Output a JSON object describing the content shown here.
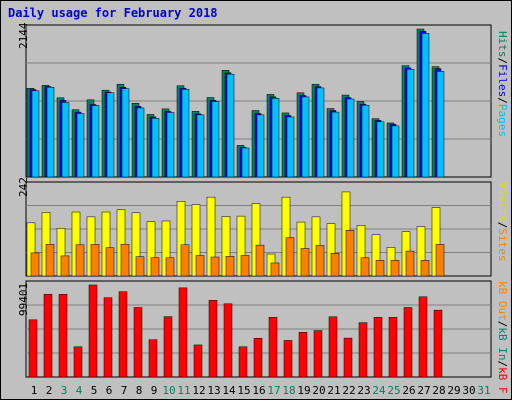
{
  "title": "Daily usage for February 2018",
  "colors": {
    "hits": "#00805c",
    "files": "#0000ff",
    "pages": "#00c0ff",
    "visits": "#ffff00",
    "sites": "#ff8000",
    "kb_in": "#008080",
    "kb_out": "#ff0000",
    "grid": "#808080",
    "panel": "#c0c0c0"
  },
  "labels": {
    "panel1_max": "2144",
    "panel2_max": "242",
    "panel3_max": "99401",
    "pages": "Pages",
    "files": "Files",
    "hits": "Hits",
    "sites": "Sites",
    "visits": "Visits",
    "kb_f": "kB F",
    "kb_in": "kB In",
    "kb_out": "kB Out",
    "sep": "/"
  },
  "chart_data": [
    {
      "type": "bar",
      "panel": "hits-files-pages",
      "ylim": [
        0,
        2144
      ],
      "grid": true,
      "categories": [
        "1",
        "2",
        "3",
        "4",
        "5",
        "6",
        "7",
        "8",
        "9",
        "10",
        "11",
        "12",
        "13",
        "14",
        "15",
        "16",
        "17",
        "18",
        "19",
        "20",
        "21",
        "22",
        "23",
        "24",
        "25",
        "26",
        "27",
        "28",
        "29",
        "30",
        "31"
      ],
      "weekend_days": [
        3,
        4,
        10,
        11,
        17,
        18,
        24,
        25,
        31
      ],
      "series": [
        {
          "name": "Hits",
          "values": [
            1285,
            1328,
            1147,
            975,
            1118,
            1258,
            1344,
            1068,
            906,
            987,
            1322,
            951,
            1151,
            1546,
            458,
            963,
            1197,
            928,
            1220,
            1344,
            992,
            1187,
            1092,
            845,
            783,
            1613,
            2144,
            1599,
            null,
            null,
            null
          ]
        },
        {
          "name": "Files",
          "values": [
            1266,
            1310,
            1110,
            940,
            1050,
            1230,
            1300,
            1023,
            870,
            950,
            1286,
            914,
            1110,
            1510,
            430,
            920,
            1160,
            890,
            1180,
            1310,
            963,
            1150,
            1055,
            820,
            762,
            1580,
            2110,
            1570,
            null,
            null,
            null
          ]
        },
        {
          "name": "Pages",
          "values": [
            1250,
            1300,
            1080,
            920,
            1035,
            1220,
            1280,
            1000,
            850,
            935,
            1270,
            900,
            1094,
            1490,
            420,
            900,
            1140,
            870,
            1160,
            1290,
            940,
            1130,
            1040,
            800,
            740,
            1560,
            2080,
            1530,
            null,
            null,
            null
          ]
        }
      ]
    },
    {
      "type": "bar",
      "panel": "visits-sites",
      "ylim": [
        0,
        242
      ],
      "grid": true,
      "categories": [
        "1",
        "2",
        "3",
        "4",
        "5",
        "6",
        "7",
        "8",
        "9",
        "10",
        "11",
        "12",
        "13",
        "14",
        "15",
        "16",
        "17",
        "18",
        "19",
        "20",
        "21",
        "22",
        "23",
        "24",
        "25",
        "26",
        "27",
        "28",
        "29",
        "30",
        "31"
      ],
      "series": [
        {
          "name": "Visits",
          "values": [
            143,
            171,
            128,
            172,
            159,
            172,
            178,
            170,
            146,
            148,
            201,
            192,
            212,
            160,
            161,
            195,
            59,
            212,
            145,
            159,
            141,
            226,
            136,
            111,
            77,
            119,
            133,
            184,
            null,
            null,
            null
          ]
        },
        {
          "name": "Sites",
          "values": [
            62,
            85,
            54,
            84,
            85,
            76,
            85,
            52,
            49,
            49,
            84,
            55,
            51,
            53,
            55,
            83,
            35,
            103,
            74,
            82,
            61,
            123,
            49,
            42,
            42,
            67,
            42,
            85,
            null,
            null,
            null
          ]
        }
      ]
    },
    {
      "type": "bar",
      "panel": "kb",
      "ylim": [
        0,
        99401
      ],
      "grid": true,
      "categories": [
        "1",
        "2",
        "3",
        "4",
        "5",
        "6",
        "7",
        "8",
        "9",
        "10",
        "11",
        "12",
        "13",
        "14",
        "15",
        "16",
        "17",
        "18",
        "19",
        "20",
        "21",
        "22",
        "23",
        "24",
        "25",
        "26",
        "27",
        "28",
        "29",
        "30",
        "31"
      ],
      "series": [
        {
          "name": "kB Out",
          "values": [
            61770,
            89440,
            89440,
            32630,
            99401,
            85670,
            92120,
            75090,
            40260,
            65160,
            96320,
            34640,
            82870,
            79100,
            32630,
            41880,
            64520,
            39480,
            48310,
            50190,
            65080,
            42020,
            58720,
            64520,
            64520,
            75090,
            86620,
            72250,
            null,
            null,
            null
          ]
        }
      ]
    }
  ]
}
